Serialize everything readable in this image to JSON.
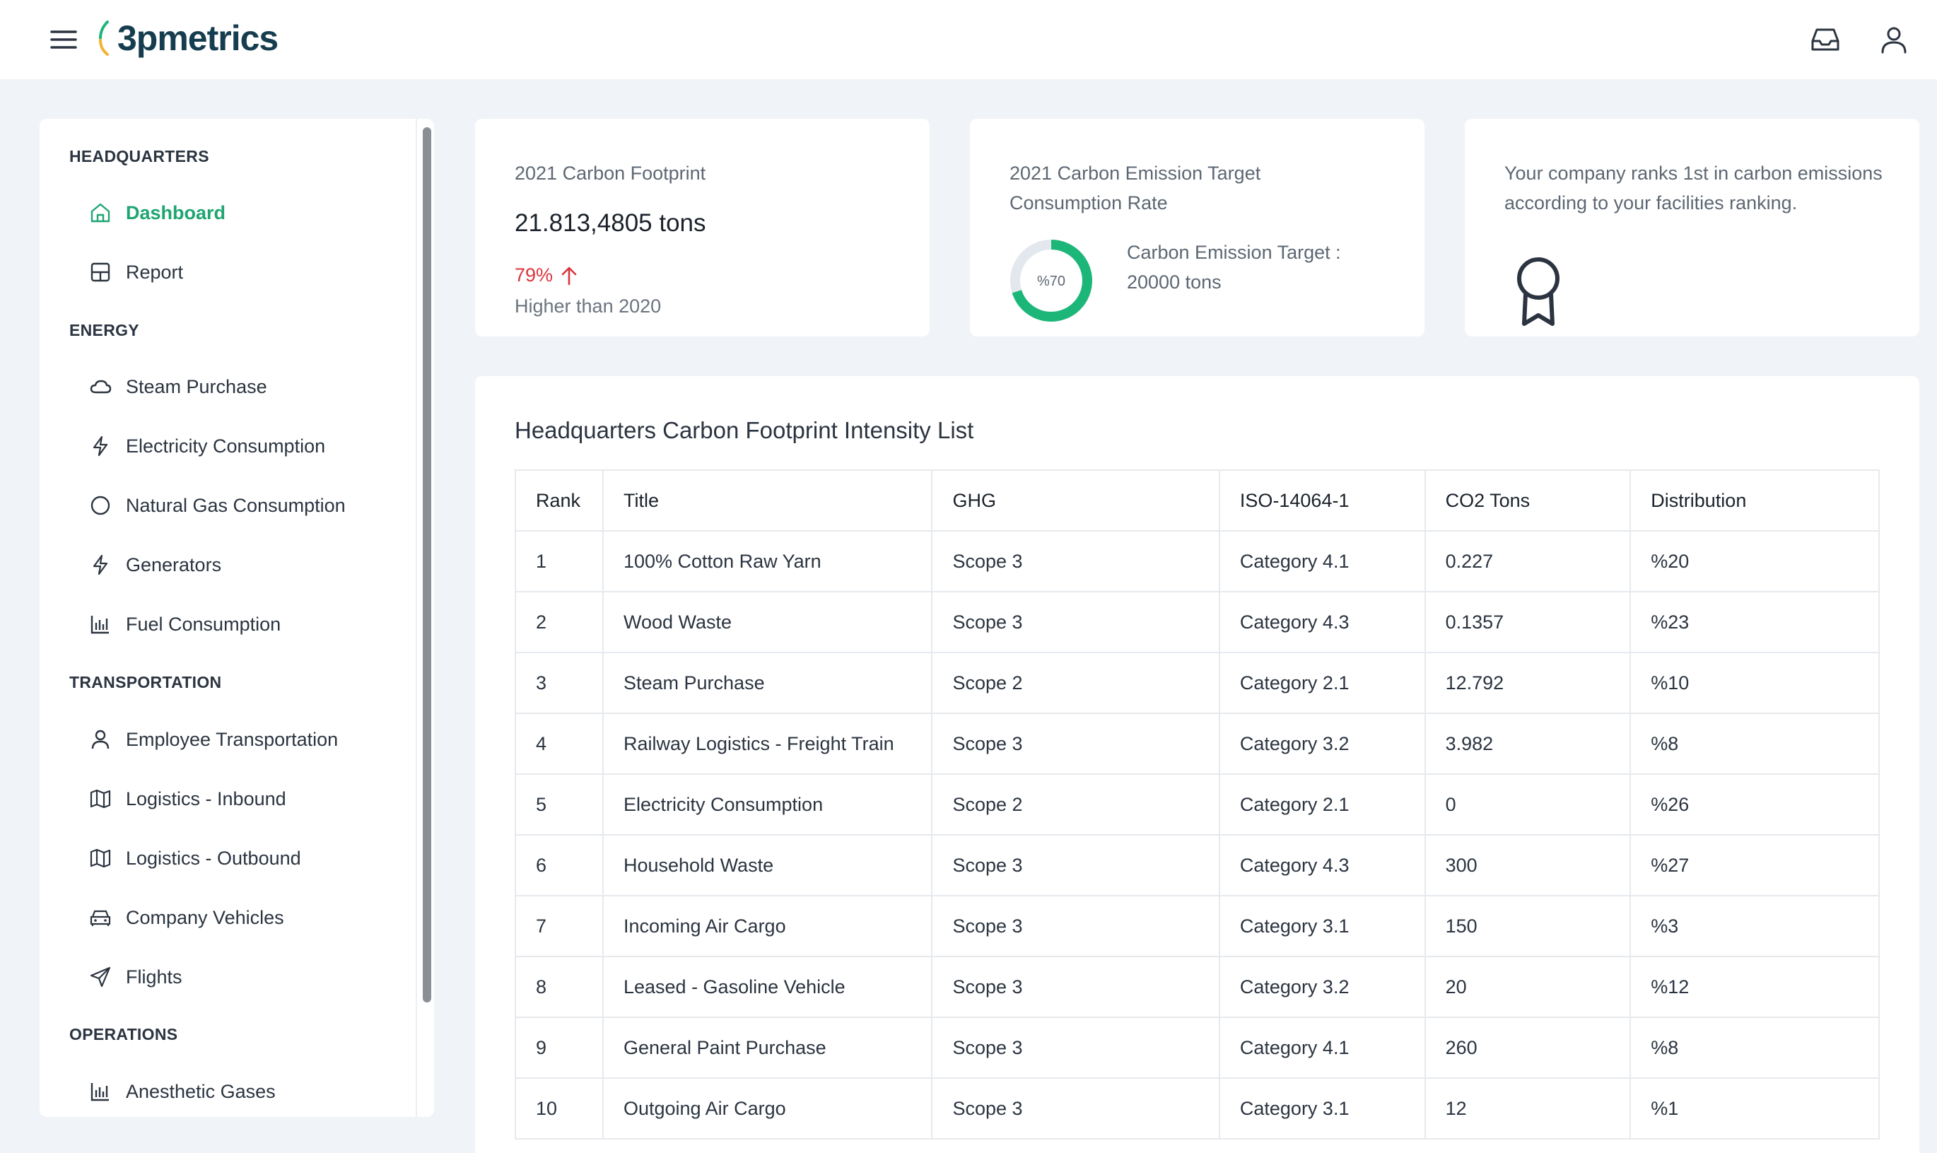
{
  "app": {
    "logo_text": "3pmetrics"
  },
  "sidebar": {
    "sections": [
      {
        "title": "HEADQUARTERS",
        "items": [
          {
            "label": "Dashboard",
            "icon": "home-icon",
            "active": true
          },
          {
            "label": "Report",
            "icon": "grid-icon"
          }
        ]
      },
      {
        "title": "ENERGY",
        "items": [
          {
            "label": "Steam Purchase",
            "icon": "cloud-icon"
          },
          {
            "label": "Electricity Consumption",
            "icon": "bolt-icon"
          },
          {
            "label": "Natural Gas Consumption",
            "icon": "circle-icon"
          },
          {
            "label": "Generators",
            "icon": "bolt-icon"
          },
          {
            "label": "Fuel Consumption",
            "icon": "bar-chart-icon"
          }
        ]
      },
      {
        "title": "TRANSPORTATION",
        "items": [
          {
            "label": "Employee Transportation",
            "icon": "user-icon"
          },
          {
            "label": "Logistics - Inbound",
            "icon": "map-icon"
          },
          {
            "label": "Logistics - Outbound",
            "icon": "map-icon"
          },
          {
            "label": "Company Vehicles",
            "icon": "car-icon"
          },
          {
            "label": "Flights",
            "icon": "send-icon"
          }
        ]
      },
      {
        "title": "OPERATIONS",
        "items": [
          {
            "label": "Anesthetic Gases",
            "icon": "bar-chart-icon"
          }
        ]
      }
    ]
  },
  "cards": {
    "footprint": {
      "label": "2021 Carbon Footprint",
      "value": "21.813,4805 tons",
      "change": "79%",
      "compare": "Higher than 2020",
      "trend_color": "#d9363e"
    },
    "target": {
      "label": "2021 Carbon Emission Target Consumption Rate",
      "donut_label": "%70",
      "donut_fraction": 0.7,
      "target_text": "Carbon Emission Target : 20000 tons",
      "accent": "#1db679"
    },
    "ranking": {
      "label": "Your company ranks 1st in carbon emissions according to your facilities ranking."
    }
  },
  "table": {
    "title": "Headquarters Carbon Footprint Intensity List",
    "columns": [
      "Rank",
      "Title",
      "GHG",
      "ISO-14064-1",
      "CO2 Tons",
      "Distribution"
    ],
    "rows": [
      [
        "1",
        "100% Cotton Raw Yarn",
        "Scope 3",
        "Category 4.1",
        "0.227",
        "%20"
      ],
      [
        "2",
        "Wood Waste",
        "Scope 3",
        "Category 4.3",
        "0.1357",
        "%23"
      ],
      [
        "3",
        "Steam Purchase",
        "Scope 2",
        "Category 2.1",
        "12.792",
        "%10"
      ],
      [
        "4",
        "Railway Logistics - Freight Train",
        "Scope 3",
        "Category 3.2",
        "3.982",
        "%8"
      ],
      [
        "5",
        "Electricity Consumption",
        "Scope 2",
        "Category 2.1",
        "0",
        "%26"
      ],
      [
        "6",
        "Household Waste",
        "Scope 3",
        "Category 4.3",
        "300",
        "%27"
      ],
      [
        "7",
        "Incoming Air Cargo",
        "Scope 3",
        "Category 3.1",
        "150",
        "%3"
      ],
      [
        "8",
        "Leased - Gasoline Vehicle",
        "Scope 3",
        "Category 3.2",
        "20",
        "%12"
      ],
      [
        "9",
        "General Paint Purchase",
        "Scope 3",
        "Category 4.1",
        "260",
        "%8"
      ],
      [
        "10",
        "Outgoing Air Cargo",
        "Scope 3",
        "Category 3.1",
        "12",
        "%1"
      ]
    ]
  }
}
